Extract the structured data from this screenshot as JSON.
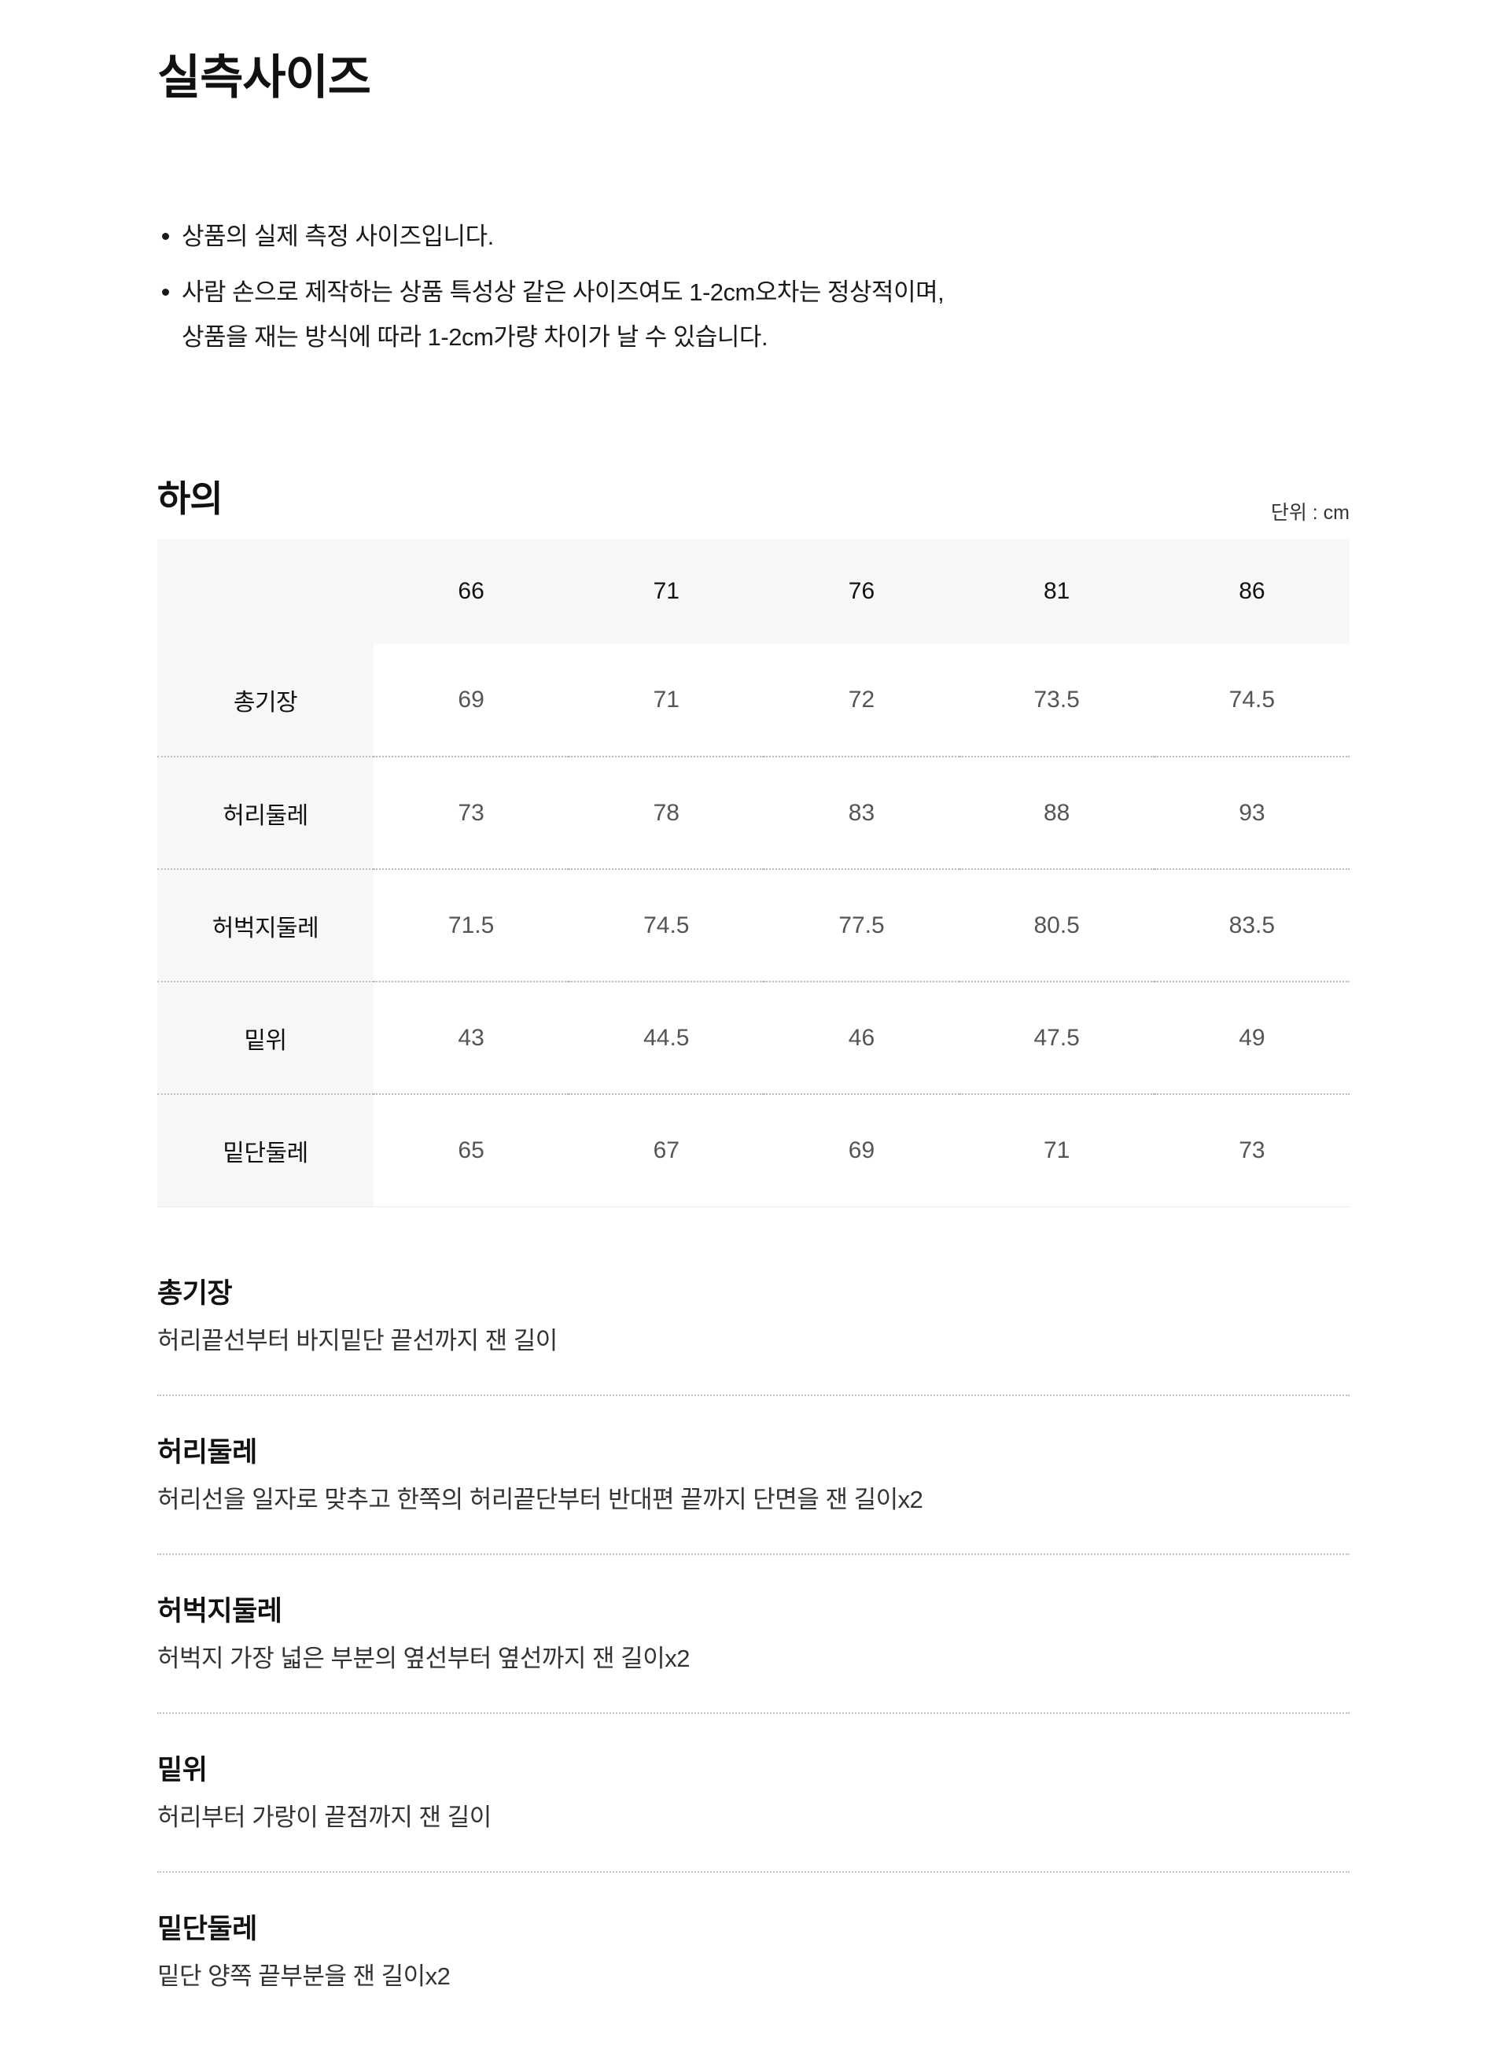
{
  "page": {
    "title": "실측사이즈",
    "notes": [
      {
        "lines": [
          "상품의 실제 측정 사이즈입니다."
        ]
      },
      {
        "lines": [
          "사람 손으로 제작하는 상품 특성상 같은 사이즈여도 1-2cm오차는 정상적이며,",
          "상품을 재는 방식에 따라 1-2cm가량 차이가 날 수 있습니다."
        ]
      }
    ]
  },
  "section": {
    "heading": "하의",
    "unit_label": "단위 : cm"
  },
  "size_table": {
    "columns": [
      "66",
      "71",
      "76",
      "81",
      "86"
    ],
    "rows": [
      {
        "label": "총기장",
        "values": [
          "69",
          "71",
          "72",
          "73.5",
          "74.5"
        ]
      },
      {
        "label": "허리둘레",
        "values": [
          "73",
          "78",
          "83",
          "88",
          "93"
        ]
      },
      {
        "label": "허벅지둘레",
        "values": [
          "71.5",
          "74.5",
          "77.5",
          "80.5",
          "83.5"
        ]
      },
      {
        "label": "밑위",
        "values": [
          "43",
          "44.5",
          "46",
          "47.5",
          "49"
        ]
      },
      {
        "label": "밑단둘레",
        "values": [
          "65",
          "67",
          "69",
          "71",
          "73"
        ]
      }
    ]
  },
  "definitions": [
    {
      "term": "총기장",
      "description": "허리끝선부터 바지밑단 끝선까지 잰 길이"
    },
    {
      "term": "허리둘레",
      "description": "허리선을 일자로 맞추고 한쪽의 허리끝단부터 반대편 끝까지 단면을 잰 길이x2"
    },
    {
      "term": "허벅지둘레",
      "description": "허벅지 가장 넓은 부분의 옆선부터 옆선까지 잰 길이x2"
    },
    {
      "term": "밑위",
      "description": "허리부터 가랑이 끝점까지 잰 길이"
    },
    {
      "term": "밑단둘레",
      "description": "밑단 양쪽 끝부분을 잰 길이x2"
    }
  ],
  "colors": {
    "table_header_bg": "#f7f7f7",
    "text_primary": "#111111",
    "text_value": "#555555",
    "divider_dotted": "#c2c2c2"
  }
}
